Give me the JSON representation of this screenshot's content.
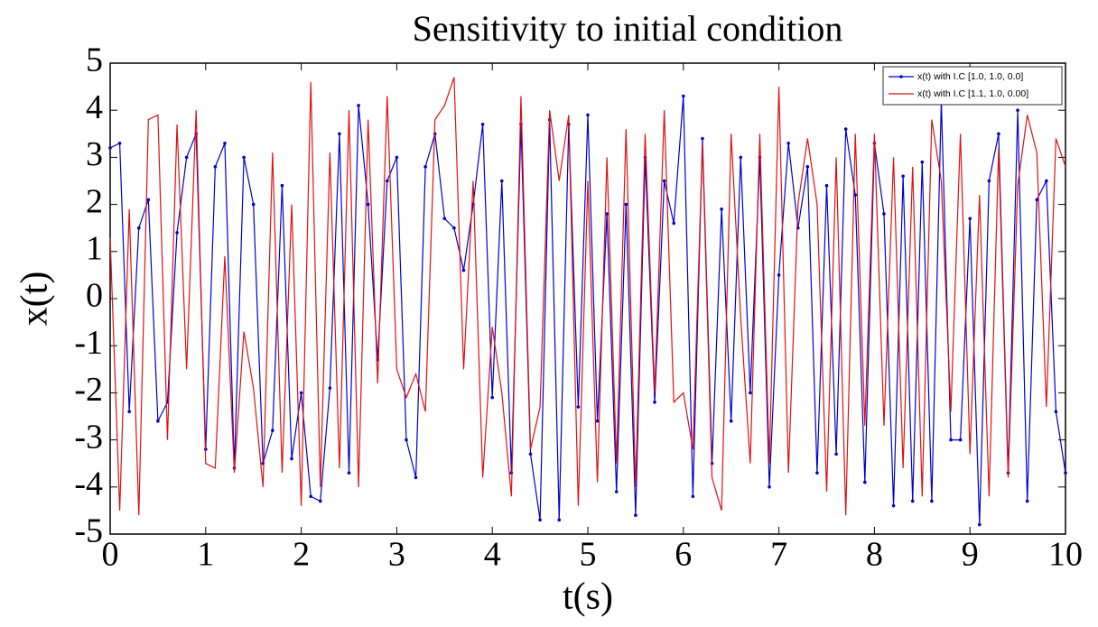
{
  "chart_data": {
    "type": "line",
    "title": "Sensitivity to initial condition",
    "x_label": "t(s)",
    "y_label": "x(t)",
    "x": [
      0,
      0.1,
      0.2,
      0.3,
      0.4,
      0.5,
      0.6,
      0.7,
      0.8,
      0.9,
      1,
      1.1,
      1.2,
      1.3,
      1.4,
      1.5,
      1.6,
      1.7,
      1.8,
      1.9,
      2,
      2.1,
      2.2,
      2.3,
      2.4,
      2.5,
      2.6,
      2.7,
      2.8,
      2.9,
      3,
      3.1,
      3.2,
      3.3,
      3.4,
      3.5,
      3.6,
      3.7,
      3.8,
      3.9,
      4,
      4.1,
      4.2,
      4.3,
      4.4,
      4.5,
      4.6,
      4.7,
      4.8,
      4.9,
      5,
      5.1,
      5.2,
      5.3,
      5.4,
      5.5,
      5.6,
      5.7,
      5.8,
      5.9,
      6,
      6.1,
      6.2,
      6.3,
      6.4,
      6.5,
      6.6,
      6.7,
      6.8,
      6.9,
      7,
      7.1,
      7.2,
      7.3,
      7.4,
      7.5,
      7.6,
      7.7,
      7.8,
      7.9,
      8,
      8.1,
      8.2,
      8.3,
      8.4,
      8.5,
      8.6,
      8.7,
      8.8,
      8.9,
      9,
      9.1,
      9.2,
      9.3,
      9.4,
      9.5,
      9.6,
      9.7,
      9.8,
      9.9,
      10
    ],
    "series": [
      {
        "name": "x(t) with I.C [1.0, 1.0, 0.0]",
        "color": "#0000cc",
        "marker": ".",
        "values": [
          3.2,
          3.3,
          -2.4,
          1.5,
          2.1,
          -2.6,
          -2.2,
          1.4,
          3.0,
          3.5,
          -3.2,
          2.8,
          3.3,
          -3.6,
          3.0,
          2.0,
          -3.5,
          -2.8,
          2.4,
          -3.4,
          -2.0,
          -4.2,
          -4.3,
          -1.9,
          3.5,
          -3.7,
          4.1,
          2.0,
          -1.3,
          2.5,
          3.0,
          -3.0,
          -3.8,
          2.8,
          3.5,
          1.7,
          1.5,
          0.6,
          2.0,
          3.7,
          -2.1,
          2.5,
          -3.7,
          3.7,
          -3.3,
          -4.7,
          3.8,
          -4.7,
          3.7,
          -2.3,
          3.9,
          -2.6,
          1.8,
          -4.1,
          2.0,
          -4.6,
          3.0,
          -2.2,
          2.5,
          1.6,
          4.3,
          -4.2,
          3.4,
          -3.5,
          1.9,
          -2.6,
          3.0,
          -2.0,
          3.0,
          -4.0,
          0.5,
          3.3,
          1.5,
          2.8,
          -3.7,
          2.4,
          -3.3,
          3.6,
          2.2,
          -3.9,
          3.3,
          1.8,
          -4.4,
          2.6,
          -4.3,
          2.9,
          -4.3,
          4.2,
          -3.0,
          -3.0,
          1.7,
          -4.8,
          2.5,
          3.5,
          -3.7,
          4.0,
          -4.3,
          2.1,
          2.5,
          -2.4,
          -3.7
        ]
      },
      {
        "name": "x(t) with I.C [1.1, 1.0, 0.00]",
        "color": "#dd1111",
        "marker": "none",
        "values": [
          1.3,
          -4.5,
          1.9,
          -4.6,
          3.8,
          3.9,
          -3.0,
          3.7,
          -1.5,
          4.0,
          -3.5,
          -3.6,
          0.9,
          -3.7,
          -0.7,
          -1.9,
          -4.0,
          3.1,
          -3.7,
          2.0,
          -4.4,
          4.6,
          -4.0,
          3.1,
          -3.6,
          4.0,
          -4.0,
          3.8,
          -1.8,
          4.3,
          -1.5,
          -2.1,
          -1.6,
          -2.4,
          3.8,
          4.1,
          4.7,
          -1.5,
          2.5,
          -3.8,
          -0.6,
          -2.0,
          -4.2,
          4.3,
          -3.2,
          -2.3,
          4.0,
          2.5,
          3.9,
          -4.4,
          2.5,
          -3.9,
          3.0,
          -3.5,
          3.6,
          -4.0,
          3.5,
          -2.0,
          4.0,
          -2.2,
          -2.0,
          -3.2,
          3.3,
          -3.8,
          -4.5,
          3.5,
          -0.4,
          -3.5,
          3.5,
          -3.5,
          4.5,
          -3.7,
          2.0,
          3.4,
          2.0,
          -4.1,
          3.0,
          -4.6,
          3.5,
          -2.7,
          3.5,
          -2.7,
          3.0,
          -3.6,
          2.8,
          -4.2,
          3.8,
          2.5,
          -2.4,
          3.5,
          -3.3,
          2.2,
          -4.2,
          3.2,
          -3.8,
          2.4,
          3.9,
          3.1,
          -2.3,
          3.4,
          2.8
        ]
      }
    ],
    "xlim": [
      0,
      10
    ],
    "ylim": [
      -5,
      5
    ],
    "xticks": [
      0,
      1,
      2,
      3,
      4,
      5,
      6,
      7,
      8,
      9,
      10
    ],
    "yticks": [
      -5,
      -4,
      -3,
      -2,
      -1,
      0,
      1,
      2,
      3,
      4,
      5
    ],
    "legend": "upper right"
  }
}
